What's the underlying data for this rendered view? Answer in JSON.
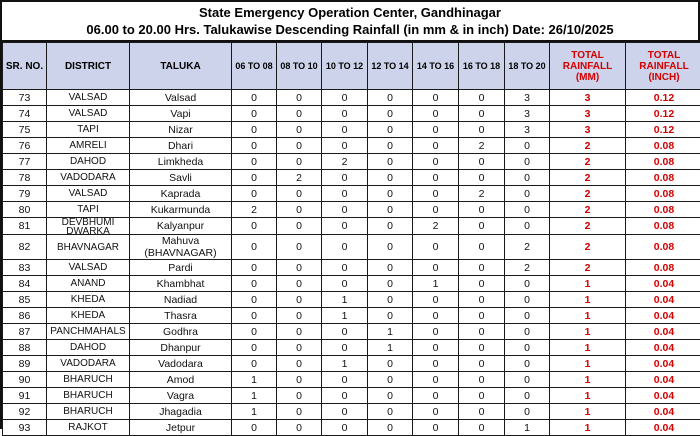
{
  "report": {
    "title": "State Emergency Operation Center, Gandhinagar",
    "subtitle": "06.00 to 20.00 Hrs. Talukawise Descending Rainfall (in mm & in inch) Date: 26/10/2025"
  },
  "table": {
    "columns": [
      "SR. NO.",
      "DISTRICT",
      "TALUKA",
      "06 TO 08",
      "08 TO 10",
      "10 TO 12",
      "12 TO 14",
      "14 TO 16",
      "16 TO 18",
      "18 TO 20",
      "TOTAL RAINFALL (MM)",
      "TOTAL RAINFALL (INCH)"
    ],
    "column_keys": [
      "sr-no",
      "district",
      "taluka",
      "06-to-08",
      "08-to-10",
      "10-to-12",
      "12-to-14",
      "14-to-16",
      "16-to-18",
      "18-to-20",
      "total-rainfall-mm",
      "total-rainfall-inch"
    ],
    "rows": [
      [
        73,
        "VALSAD",
        "Valsad",
        0,
        0,
        0,
        0,
        0,
        0,
        3,
        3,
        "0.12"
      ],
      [
        74,
        "VALSAD",
        "Vapi",
        0,
        0,
        0,
        0,
        0,
        0,
        3,
        3,
        "0.12"
      ],
      [
        75,
        "TAPI",
        "Nizar",
        0,
        0,
        0,
        0,
        0,
        0,
        3,
        3,
        "0.12"
      ],
      [
        76,
        "AMRELI",
        "Dhari",
        0,
        0,
        0,
        0,
        0,
        2,
        0,
        2,
        "0.08"
      ],
      [
        77,
        "DAHOD",
        "Limkheda",
        0,
        0,
        2,
        0,
        0,
        0,
        0,
        2,
        "0.08"
      ],
      [
        78,
        "VADODARA",
        "Savli",
        0,
        2,
        0,
        0,
        0,
        0,
        0,
        2,
        "0.08"
      ],
      [
        79,
        "VALSAD",
        "Kaprada",
        0,
        0,
        0,
        0,
        0,
        2,
        0,
        2,
        "0.08"
      ],
      [
        80,
        "TAPI",
        "Kukarmunda",
        2,
        0,
        0,
        0,
        0,
        0,
        0,
        2,
        "0.08"
      ],
      [
        81,
        "DEVBHUMI DWARKA",
        "Kalyanpur",
        0,
        0,
        0,
        0,
        2,
        0,
        0,
        2,
        "0.08"
      ],
      [
        82,
        "BHAVNAGAR",
        "Mahuva (BHAVNAGAR)",
        0,
        0,
        0,
        0,
        0,
        0,
        2,
        2,
        "0.08"
      ],
      [
        83,
        "VALSAD",
        "Pardi",
        0,
        0,
        0,
        0,
        0,
        0,
        2,
        2,
        "0.08"
      ],
      [
        84,
        "ANAND",
        "Khambhat",
        0,
        0,
        0,
        0,
        1,
        0,
        0,
        1,
        "0.04"
      ],
      [
        85,
        "KHEDA",
        "Nadiad",
        0,
        0,
        1,
        0,
        0,
        0,
        0,
        1,
        "0.04"
      ],
      [
        86,
        "KHEDA",
        "Thasra",
        0,
        0,
        1,
        0,
        0,
        0,
        0,
        1,
        "0.04"
      ],
      [
        87,
        "PANCHMAHALS",
        "Godhra",
        0,
        0,
        0,
        1,
        0,
        0,
        0,
        1,
        "0.04"
      ],
      [
        88,
        "DAHOD",
        "Dhanpur",
        0,
        0,
        0,
        1,
        0,
        0,
        0,
        1,
        "0.04"
      ],
      [
        89,
        "VADODARA",
        "Vadodara",
        0,
        0,
        1,
        0,
        0,
        0,
        0,
        1,
        "0.04"
      ],
      [
        90,
        "BHARUCH",
        "Amod",
        1,
        0,
        0,
        0,
        0,
        0,
        0,
        1,
        "0.04"
      ],
      [
        91,
        "BHARUCH",
        "Vagra",
        1,
        0,
        0,
        0,
        0,
        0,
        0,
        1,
        "0.04"
      ],
      [
        92,
        "BHARUCH",
        "Jhagadia",
        1,
        0,
        0,
        0,
        0,
        0,
        0,
        1,
        "0.04"
      ],
      [
        93,
        "RAJKOT",
        "Jetpur",
        0,
        0,
        0,
        0,
        0,
        0,
        1,
        1,
        "0.04"
      ]
    ]
  },
  "colors": {
    "header_bg": "#ccd3ea",
    "accent_red": "#d40000",
    "border": "#1a1a1a"
  }
}
